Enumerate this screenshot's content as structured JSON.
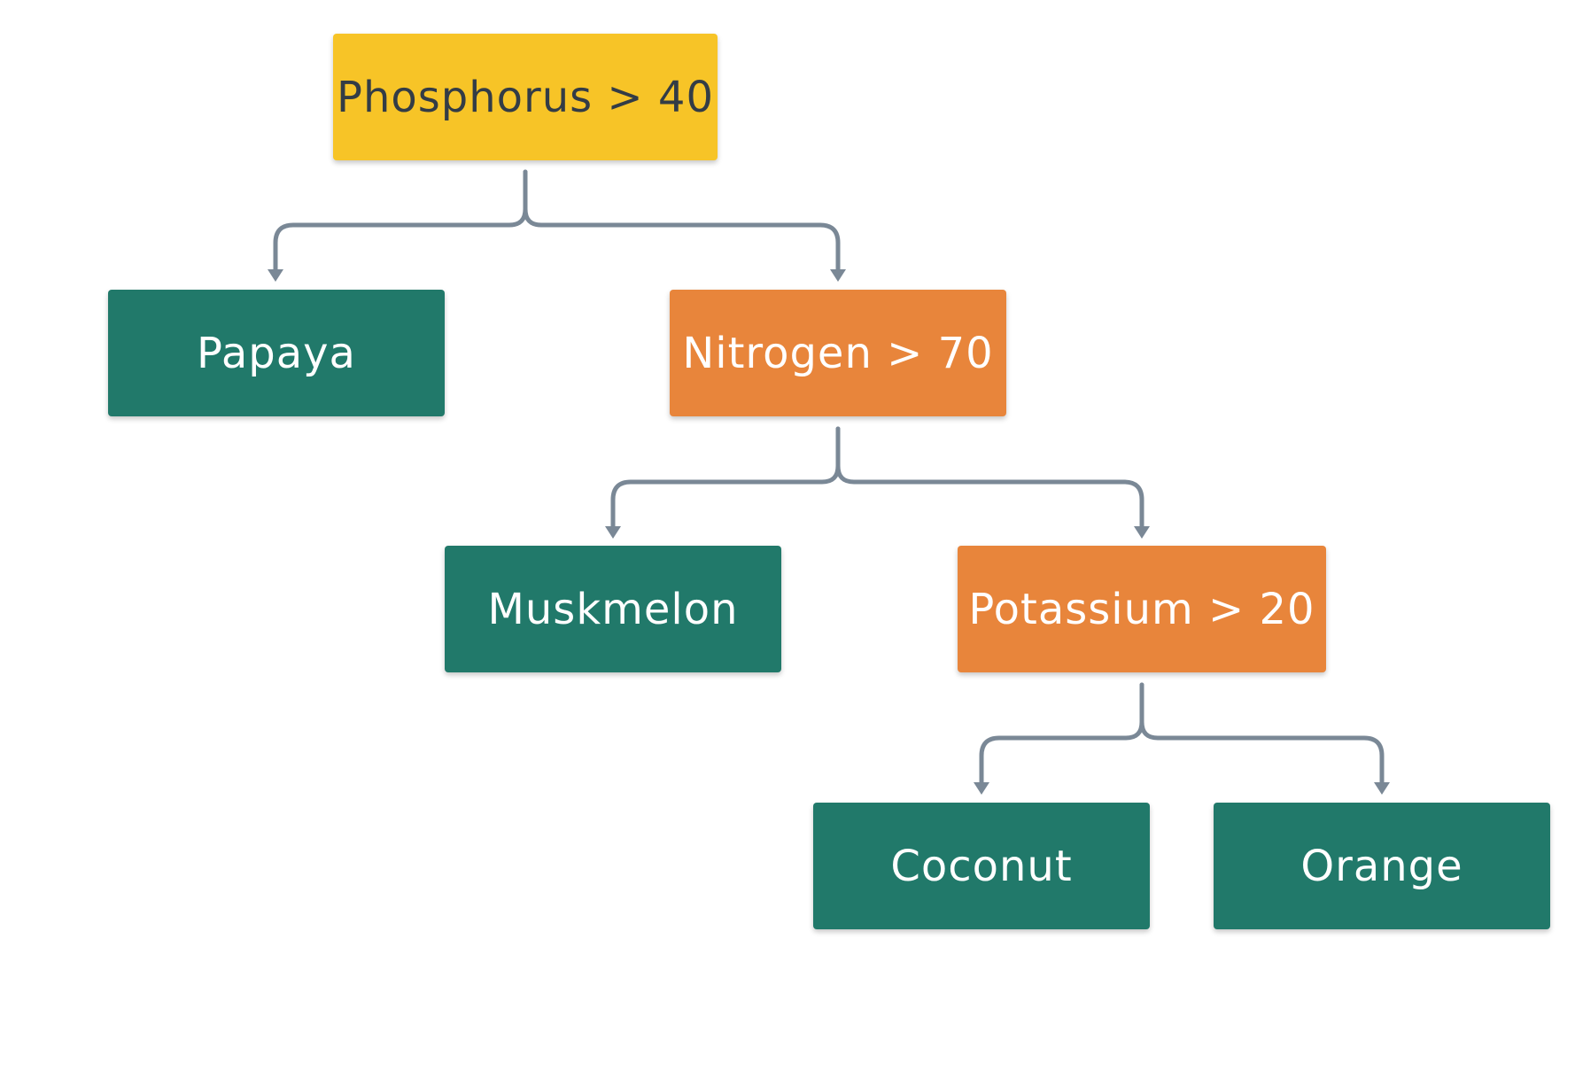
{
  "diagram": {
    "type": "decision-tree",
    "colors": {
      "root": "#f7c427",
      "decision": "#e8853b",
      "leaf": "#21796a",
      "connector": "#7a8896"
    },
    "nodes": {
      "root": {
        "label": "Phosphorus > 40"
      },
      "papaya": {
        "label": "Papaya"
      },
      "nitrogen": {
        "label": "Nitrogen > 70"
      },
      "muskmelon": {
        "label": "Muskmelon"
      },
      "potassium": {
        "label": "Potassium > 20"
      },
      "coconut": {
        "label": "Coconut"
      },
      "orange": {
        "label": "Orange"
      }
    },
    "edges": [
      {
        "from": "root",
        "to": "papaya"
      },
      {
        "from": "root",
        "to": "nitrogen"
      },
      {
        "from": "nitrogen",
        "to": "muskmelon"
      },
      {
        "from": "nitrogen",
        "to": "potassium"
      },
      {
        "from": "potassium",
        "to": "coconut"
      },
      {
        "from": "potassium",
        "to": "orange"
      }
    ]
  }
}
